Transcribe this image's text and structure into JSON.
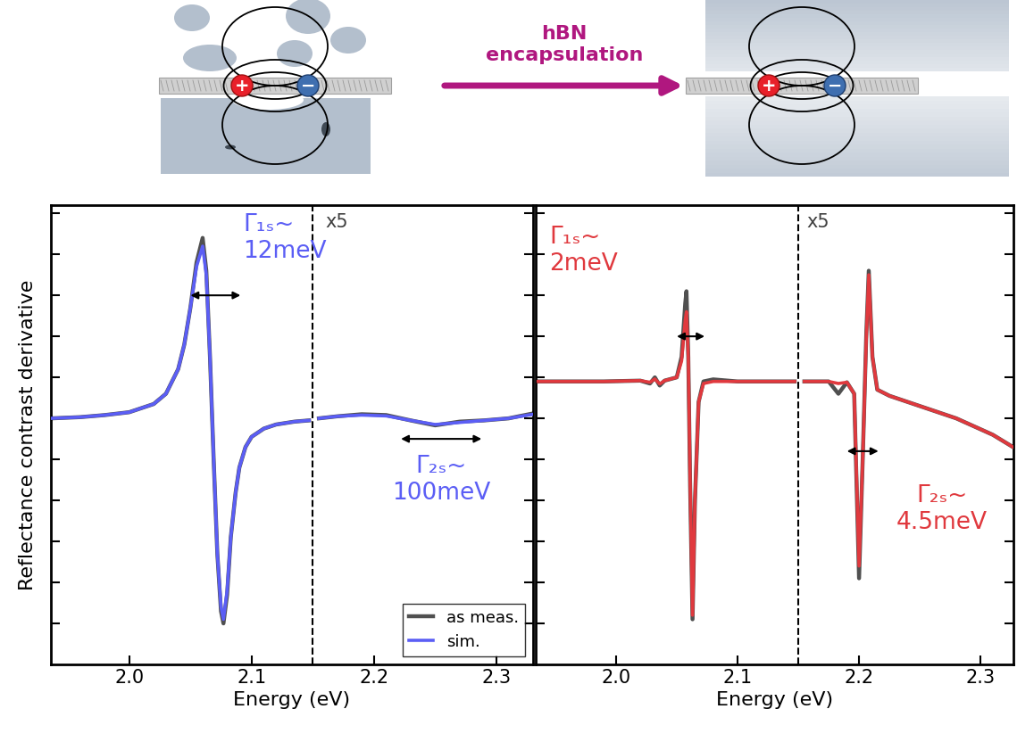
{
  "diagram": {
    "arrow_label": "hBN\nencapsulation",
    "charges": [
      "+",
      "−"
    ]
  },
  "chart_data": [
    {
      "type": "line",
      "xlabel": "Energy (eV)",
      "ylabel": "Reflectance contrast derivative",
      "xlim": [
        1.936,
        2.33
      ],
      "xticks": [
        2.0,
        2.1,
        2.2,
        2.3
      ],
      "ylim": [
        -6,
        5.2
      ],
      "yticks": [
        -5,
        -4,
        -3,
        -2,
        -1,
        0,
        1,
        2,
        3,
        4,
        5
      ],
      "tick_labels": "x",
      "legend": "lower right",
      "divider": 2.15,
      "x": [
        1.936,
        1.96,
        1.98,
        2.0,
        2.02,
        2.03,
        2.04,
        2.045,
        2.05,
        2.055,
        2.06,
        2.063,
        2.066,
        2.069,
        2.072,
        2.075,
        2.077,
        2.08,
        2.083,
        2.087,
        2.09,
        2.095,
        2.1,
        2.11,
        2.12,
        2.135,
        2.147,
        2.151,
        2.155,
        2.17,
        2.19,
        2.21,
        2.23,
        2.25,
        2.27,
        2.29,
        2.31,
        2.33
      ],
      "series": [
        {
          "name": "as meas.",
          "color": "#505050",
          "values": [
            0.0,
            0.03,
            0.08,
            0.15,
            0.35,
            0.6,
            1.2,
            1.8,
            2.7,
            3.8,
            4.4,
            3.6,
            1.5,
            -1.0,
            -3.3,
            -4.7,
            -5.0,
            -4.3,
            -2.9,
            -1.8,
            -1.2,
            -0.7,
            -0.45,
            -0.25,
            -0.15,
            -0.08,
            -0.05,
            null,
            0.0,
            0.05,
            0.1,
            0.08,
            -0.05,
            -0.17,
            -0.08,
            -0.05,
            0.0,
            0.12
          ]
        },
        {
          "name": "sim.",
          "color": "#5b5ef5",
          "values": [
            0.0,
            0.03,
            0.08,
            0.15,
            0.35,
            0.6,
            1.2,
            1.8,
            2.7,
            3.7,
            4.2,
            3.5,
            1.5,
            -1.0,
            -3.3,
            -4.6,
            -4.9,
            -4.2,
            -2.9,
            -1.8,
            -1.2,
            -0.7,
            -0.45,
            -0.25,
            -0.15,
            -0.08,
            -0.05,
            null,
            0.0,
            0.05,
            0.08,
            0.06,
            -0.05,
            -0.15,
            -0.1,
            -0.05,
            0.0,
            0.1
          ]
        }
      ],
      "annotations": [
        {
          "text": "x5",
          "color": "#404040"
        },
        {
          "text": "Γ₁ₛ~\n12meV",
          "color": "#5b5ef5"
        },
        {
          "text": "Γ₂ₛ~\n100meV",
          "color": "#5b5ef5"
        }
      ]
    },
    {
      "type": "line",
      "xlabel": "Energy (eV)",
      "xlim": [
        1.934,
        2.327
      ],
      "xticks": [
        2.0,
        2.1,
        2.2,
        2.3
      ],
      "ylim": [
        -6,
        5.2
      ],
      "yticks": [
        -5,
        -4,
        -3,
        -2,
        -1,
        0,
        1,
        2,
        3,
        4,
        5
      ],
      "tick_labels": "x",
      "divider": 2.15,
      "x": [
        1.936,
        1.99,
        2.02,
        2.028,
        2.032,
        2.036,
        2.04,
        2.05,
        2.054,
        2.057,
        2.058,
        2.0595,
        2.061,
        2.063,
        2.065,
        2.068,
        2.072,
        2.08,
        2.1,
        2.147,
        2.151,
        2.155,
        2.175,
        2.183,
        2.19,
        2.196,
        2.2,
        2.203,
        2.206,
        2.208,
        2.211,
        2.215,
        2.225,
        2.25,
        2.28,
        2.31,
        2.33
      ],
      "series": [
        {
          "name": "as meas.",
          "color": "#505050",
          "values": [
            0.9,
            0.9,
            0.92,
            0.85,
            1.0,
            0.8,
            0.92,
            1.0,
            1.5,
            2.8,
            3.1,
            1.5,
            -1.6,
            -4.9,
            -2.0,
            0.4,
            0.9,
            0.95,
            0.9,
            0.9,
            null,
            0.9,
            0.9,
            0.6,
            0.88,
            0.6,
            -3.9,
            -1.0,
            2.1,
            3.6,
            1.5,
            0.7,
            0.55,
            0.3,
            0.0,
            -0.4,
            -0.76
          ]
        },
        {
          "name": "sim.",
          "color": "#e0393e",
          "values": [
            0.9,
            0.9,
            0.92,
            0.88,
            0.96,
            0.84,
            0.92,
            1.0,
            1.4,
            2.4,
            2.6,
            1.5,
            -1.5,
            -4.8,
            -2.0,
            0.4,
            0.85,
            0.9,
            0.9,
            0.9,
            null,
            0.9,
            0.9,
            0.85,
            0.88,
            0.6,
            -3.6,
            -1.0,
            2.0,
            3.5,
            1.5,
            0.7,
            0.55,
            0.3,
            0.0,
            -0.4,
            -0.76
          ]
        }
      ],
      "annotations": [
        {
          "text": "x5",
          "color": "#404040"
        },
        {
          "text": "Γ₁ₛ~\n2meV",
          "color": "#e0393e"
        },
        {
          "text": "Γ₂ₛ~\n4.5meV",
          "color": "#e0393e"
        }
      ]
    }
  ]
}
